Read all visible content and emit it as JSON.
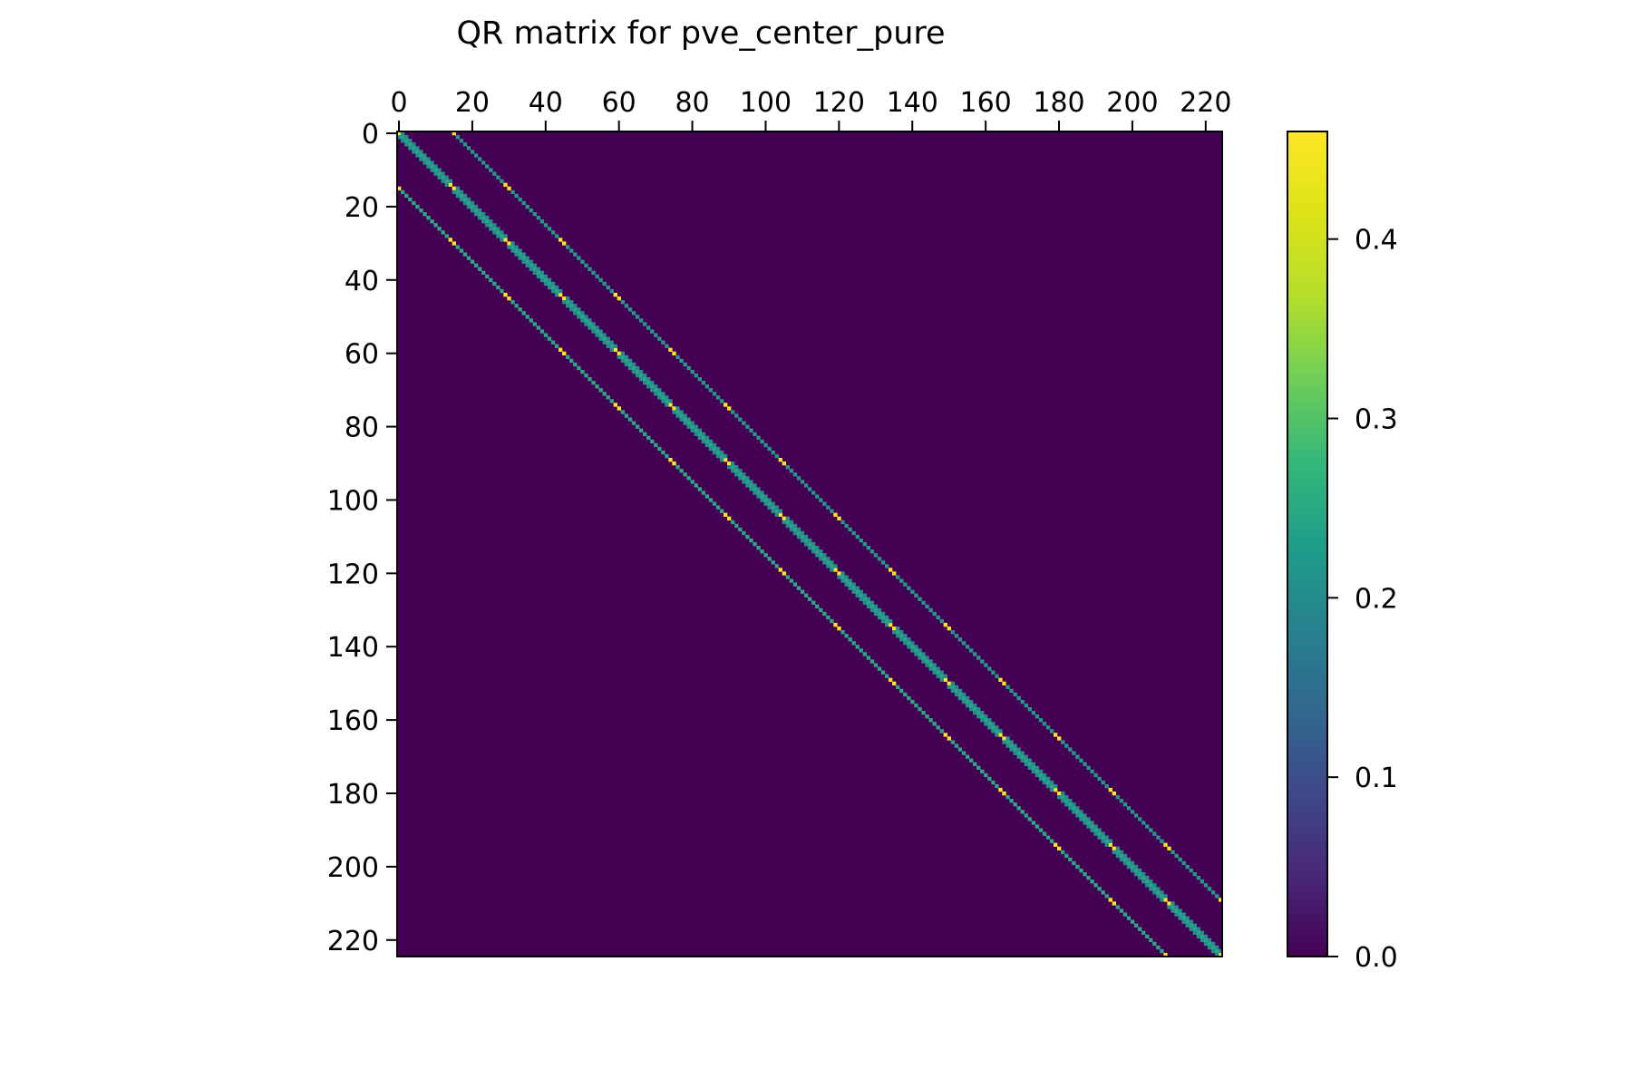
{
  "chart_data": {
    "type": "heatmap",
    "title": "QR matrix for pve_center_pure",
    "xlabel": "",
    "ylabel": "",
    "matrix_size": 225,
    "xlim": [
      0,
      225
    ],
    "ylim": [
      225,
      0
    ],
    "x_ticks": [
      0,
      20,
      40,
      60,
      80,
      100,
      120,
      140,
      160,
      180,
      200,
      220
    ],
    "y_ticks": [
      0,
      20,
      40,
      60,
      80,
      100,
      120,
      140,
      160,
      180,
      200,
      220
    ],
    "x_tick_labels": [
      "0",
      "20",
      "40",
      "60",
      "80",
      "100",
      "120",
      "140",
      "160",
      "180",
      "200",
      "220"
    ],
    "y_tick_labels": [
      "0",
      "20",
      "40",
      "60",
      "80",
      "100",
      "120",
      "140",
      "160",
      "180",
      "200",
      "220"
    ],
    "x_axis_position": "top",
    "colormap": "viridis",
    "background_value": 0.0,
    "colorbar": {
      "min": 0.0,
      "max": 0.46,
      "ticks": [
        0.0,
        0.1,
        0.2,
        0.3,
        0.4
      ],
      "tick_labels": [
        "0.0",
        "0.1",
        "0.2",
        "0.3",
        "0.4"
      ]
    },
    "bands": [
      {
        "offset": 0,
        "typical_value": 0.25,
        "block_edge_value": 0.46,
        "description": "main diagonal"
      },
      {
        "offset": 1,
        "typical_value": 0.2,
        "block_edge_value": 0.2,
        "description": "first super-diagonal"
      },
      {
        "offset": -1,
        "typical_value": 0.2,
        "block_edge_value": 0.2,
        "description": "first sub-diagonal"
      },
      {
        "offset": 15,
        "typical_value": 0.22,
        "block_edge_value": 0.46,
        "description": "upper off-diagonal band"
      },
      {
        "offset": -15,
        "typical_value": 0.25,
        "block_edge_value": 0.46,
        "description": "lower off-diagonal band"
      }
    ],
    "block_size": 15,
    "grid": false
  }
}
